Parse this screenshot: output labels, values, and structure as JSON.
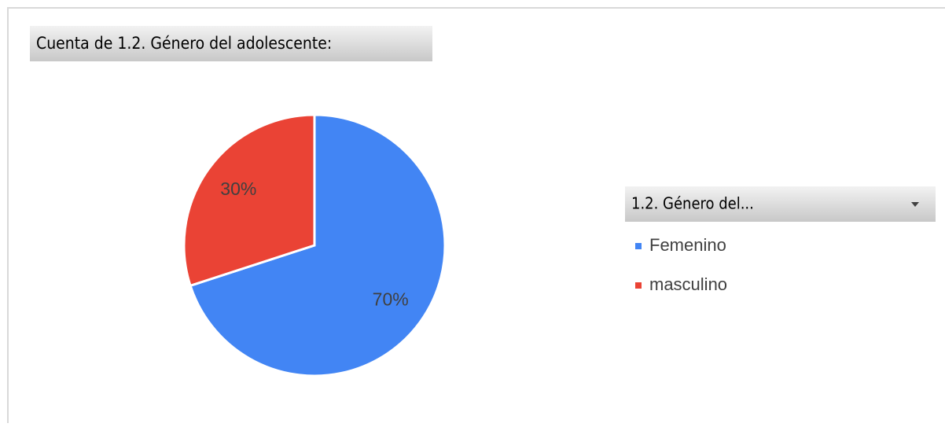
{
  "chart_data": {
    "type": "pie",
    "title": "Cuenta de 1.2. Género del adolescente:",
    "legend_title": "1.2. Género del...",
    "categories": [
      "Femenino",
      "masculino"
    ],
    "values": [
      70,
      30
    ],
    "value_labels": [
      "70%",
      "30%"
    ],
    "colors": [
      "#4285f4",
      "#ea4335"
    ]
  }
}
